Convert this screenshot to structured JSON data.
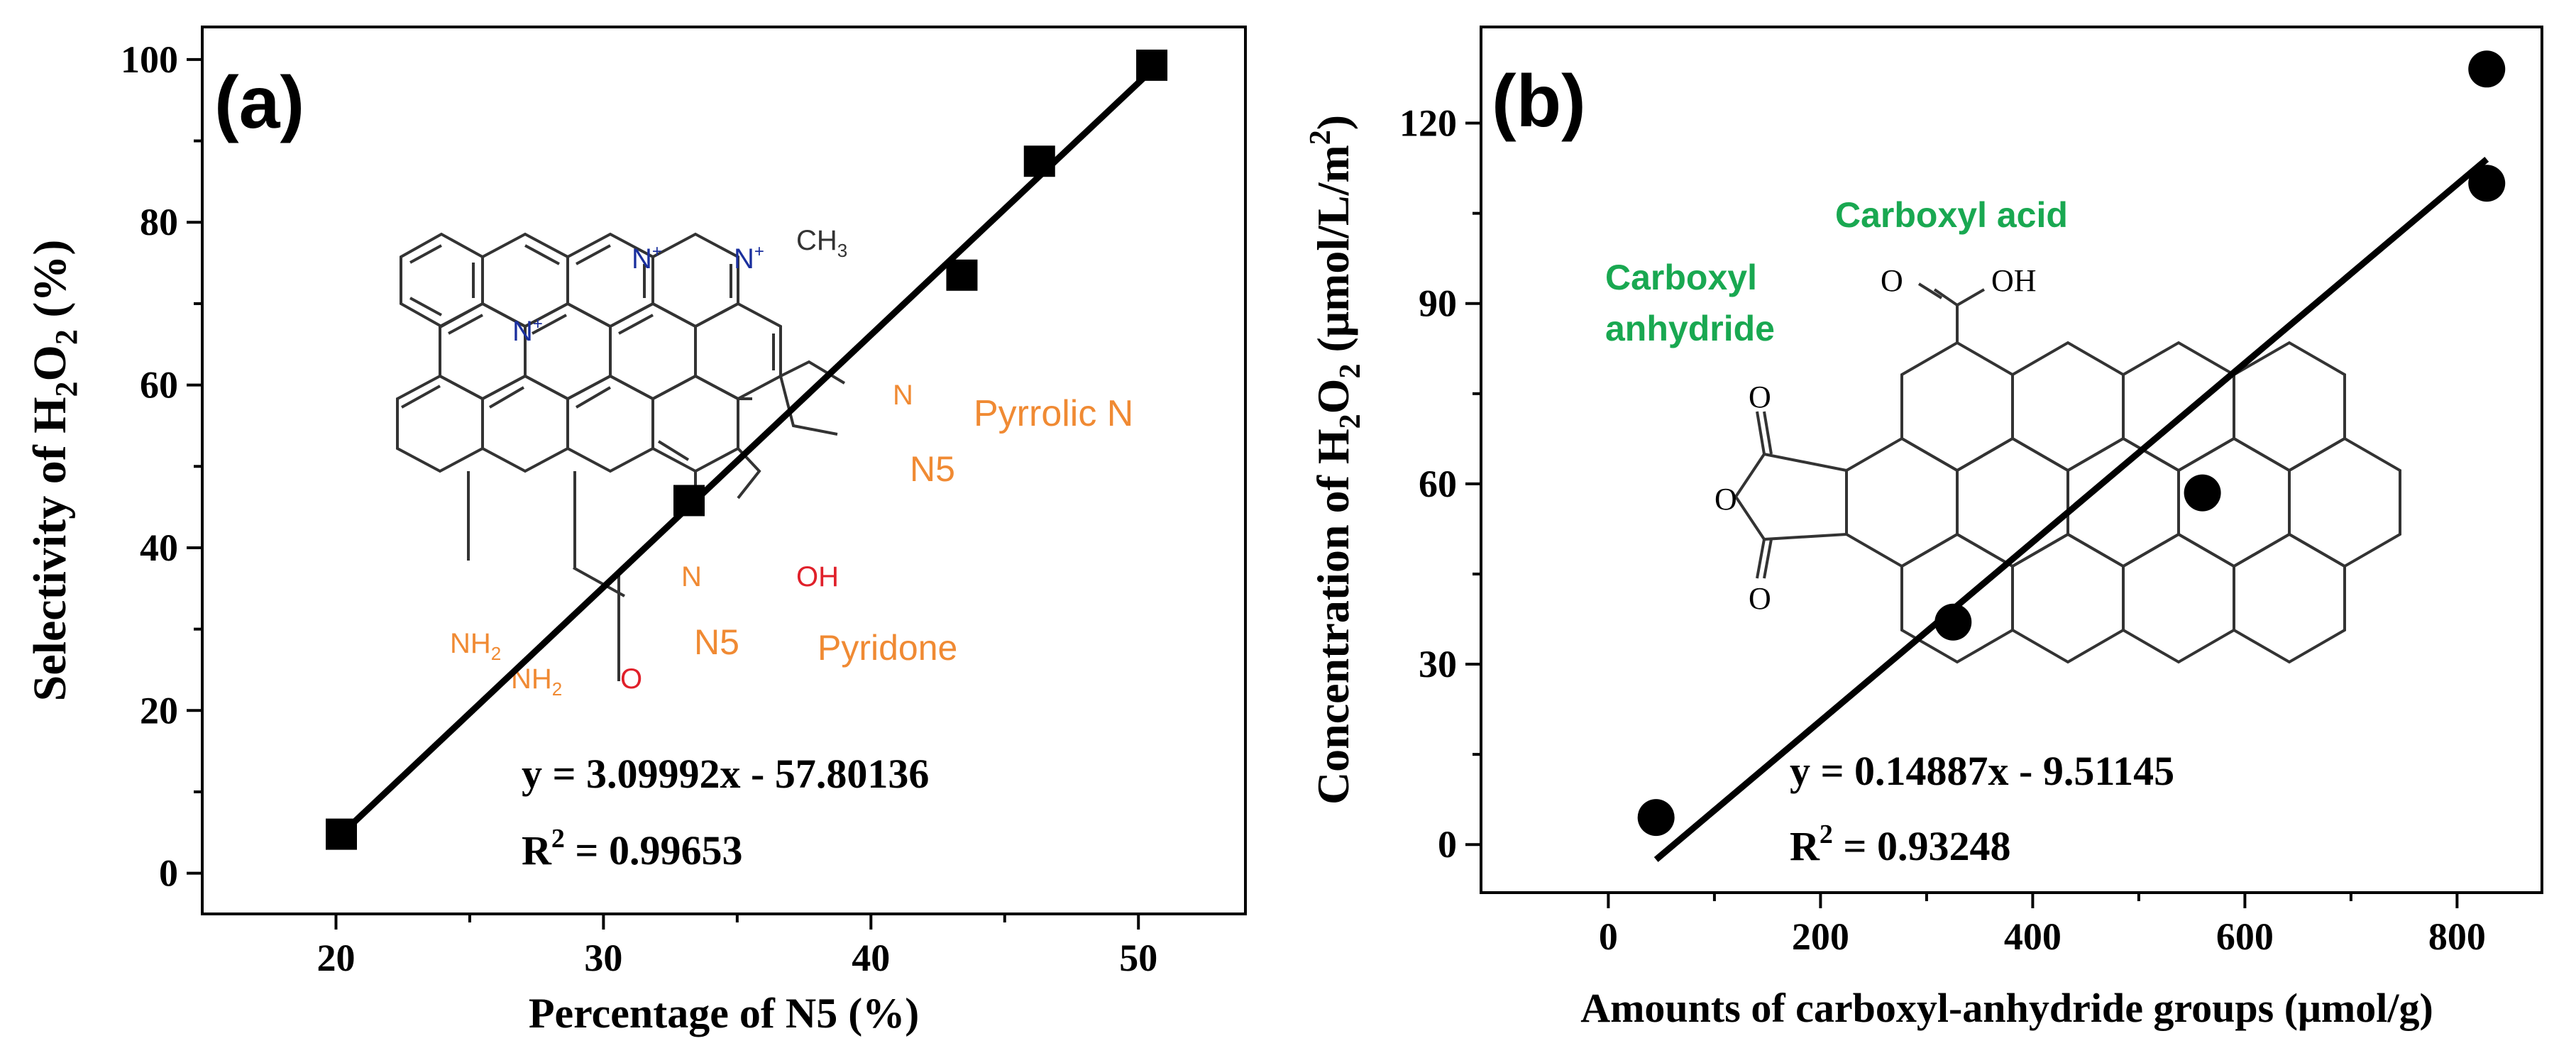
{
  "chart_data": [
    {
      "type": "scatter",
      "panel_label": "(a)",
      "marker": "square",
      "xlabel": "Percentage of  N5 (%)",
      "ylabel_parts": [
        "Selectivity of H",
        "2",
        "O",
        "2",
        " (%)"
      ],
      "xlim": [
        15,
        54
      ],
      "ylim": [
        -5,
        104
      ],
      "xticks": [
        20,
        30,
        40,
        50
      ],
      "yticks": [
        0,
        20,
        40,
        60,
        80,
        100
      ],
      "x": [
        20.2,
        33.2,
        43.4,
        46.3,
        50.5
      ],
      "y": [
        4.8,
        45.8,
        73.5,
        87.5,
        99.3
      ],
      "fit": {
        "x": [
          20.2,
          50.6
        ],
        "y": [
          4.8,
          99.0
        ]
      },
      "equation": "y = 3.09992x - 57.80136",
      "r2_prefix": "R",
      "r2_sup": "2",
      "r2_value": " = 0.99653",
      "structure_labels": {
        "pyrrolic": "Pyrrolic N",
        "pyridone": "Pyridone",
        "n5_right": "N5",
        "n5_bottom": "N5",
        "ch3": "CH",
        "ch3_sub": "3",
        "n_plus": "N",
        "plus": "+",
        "n_ring": "N",
        "oh": "OH",
        "nh2": "NH",
        "nh2_sub": "2",
        "o": "O"
      }
    },
    {
      "type": "scatter",
      "panel_label": "(b)",
      "marker": "circle",
      "xlabel": "Amounts of carboxyl-anhydride groups (μmol/g)",
      "ylabel_parts": [
        "Concentration of H",
        "2",
        "O",
        "2",
        " (μmol/L/m",
        "2",
        ")"
      ],
      "xlim": [
        -120,
        880
      ],
      "ylim": [
        -8,
        136
      ],
      "xticks": [
        0,
        200,
        400,
        600,
        800
      ],
      "yticks": [
        0,
        30,
        60,
        90,
        120
      ],
      "x": [
        45,
        325,
        560,
        828,
        828
      ],
      "y": [
        4.5,
        37,
        58.5,
        110,
        129
      ],
      "fit": {
        "x": [
          45,
          828
        ],
        "y": [
          -2.5,
          114
        ]
      },
      "equation": "y = 0.14887x - 9.51145",
      "r2_prefix": "R",
      "r2_sup": "2",
      "r2_value": " = 0.93248",
      "structure_labels": {
        "carboxyl_acid": "Carboxyl acid",
        "carboxyl_anhydride_1": "Carboxyl",
        "carboxyl_anhydride_2": "anhydride",
        "o": "O",
        "oh": "OH"
      }
    }
  ],
  "colors": {
    "ink": "#000000",
    "orange": "#f08a33",
    "green": "#19a851",
    "nitrogen": "#1a2f9e",
    "oxygen": "#e0202a"
  }
}
